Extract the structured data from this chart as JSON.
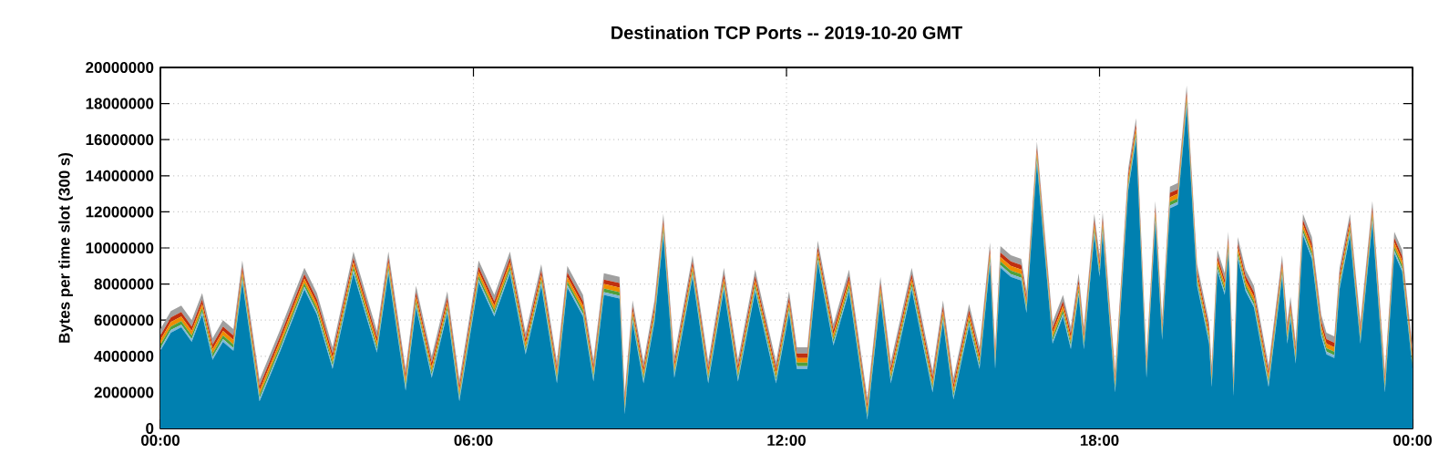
{
  "chart_data": {
    "type": "area",
    "stacked": true,
    "title": "Destination TCP Ports -- 2019-10-20 GMT",
    "ylabel": "Bytes per time slot (300 s)",
    "x": [
      0,
      0.2,
      0.4,
      0.6,
      0.8,
      1.0,
      1.2,
      1.4,
      1.57,
      1.9,
      2.3,
      2.76,
      3.0,
      3.3,
      3.7,
      4.15,
      4.37,
      4.7,
      4.9,
      5.2,
      5.5,
      5.73,
      6.1,
      6.4,
      6.7,
      7.0,
      7.3,
      7.6,
      7.8,
      8.1,
      8.3,
      8.5,
      8.8,
      8.9,
      9.05,
      9.26,
      9.47,
      9.64,
      9.85,
      10.2,
      10.5,
      10.8,
      11.07,
      11.4,
      11.8,
      12.05,
      12.2,
      12.4,
      12.6,
      12.9,
      13.2,
      13.55,
      13.8,
      14.0,
      14.4,
      14.8,
      15.0,
      15.2,
      15.5,
      15.7,
      15.9,
      16.0,
      16.1,
      16.3,
      16.5,
      16.6,
      16.8,
      17.1,
      17.3,
      17.45,
      17.6,
      17.7,
      17.9,
      18.0,
      18.06,
      18.2,
      18.3,
      18.55,
      18.7,
      18.9,
      19.07,
      19.2,
      19.35,
      19.5,
      19.67,
      19.87,
      20.1,
      20.15,
      20.26,
      20.4,
      20.47,
      20.57,
      20.65,
      20.8,
      20.96,
      21.24,
      21.5,
      21.6,
      21.66,
      21.76,
      21.9,
      22.07,
      22.25,
      22.35,
      22.5,
      22.6,
      22.8,
      23.0,
      23.23,
      23.47,
      23.65,
      23.8,
      24.0
    ],
    "series": [
      {
        "color": "#0080b0",
        "values": [
          4300000,
          5300000,
          5600000,
          4800000,
          6300000,
          3800000,
          4800000,
          4300000,
          8100000,
          1500000,
          4300000,
          7700000,
          6300000,
          3300000,
          8600000,
          4200000,
          8600000,
          2100000,
          6700000,
          2800000,
          6400000,
          1500000,
          8100000,
          6200000,
          8600000,
          4100000,
          7900000,
          2500000,
          7800000,
          6200000,
          2600000,
          7400000,
          7200000,
          800000,
          5900000,
          2500000,
          5900000,
          10700000,
          2800000,
          8400000,
          2500000,
          7700000,
          2600000,
          7600000,
          2500000,
          6400000,
          3300000,
          3300000,
          9200000,
          4600000,
          7600000,
          500000,
          7200000,
          2500000,
          7700000,
          2000000,
          5900000,
          1600000,
          5700000,
          3300000,
          9100000,
          3300000,
          8900000,
          8400000,
          8200000,
          6400000,
          14700000,
          4700000,
          6200000,
          4400000,
          7400000,
          4400000,
          10700000,
          8400000,
          10800000,
          5600000,
          2000000,
          13200000,
          16000000,
          2800000,
          11400000,
          4900000,
          12200000,
          12400000,
          17800000,
          7900000,
          4700000,
          2300000,
          8700000,
          7400000,
          9700000,
          1800000,
          9400000,
          7600000,
          6700000,
          2300000,
          8400000,
          4700000,
          6100000,
          3600000,
          10700000,
          9400000,
          5100000,
          4100000,
          3900000,
          7700000,
          10700000,
          4700000,
          11400000,
          2000000,
          9700000,
          8700000,
          3300000
        ]
      },
      {
        "color": "#80b8d8",
        "values": [
          150000,
          150000,
          150000,
          150000,
          150000,
          150000,
          150000,
          150000,
          150000,
          150000,
          150000,
          150000,
          150000,
          150000,
          150000,
          150000,
          150000,
          150000,
          150000,
          150000,
          150000,
          150000,
          150000,
          150000,
          150000,
          150000,
          150000,
          150000,
          150000,
          150000,
          150000,
          150000,
          150000,
          150000,
          150000,
          150000,
          150000,
          150000,
          150000,
          150000,
          150000,
          150000,
          150000,
          150000,
          150000,
          150000,
          150000,
          150000,
          150000,
          150000,
          150000,
          150000,
          150000,
          150000,
          150000,
          150000,
          150000,
          150000,
          150000,
          150000,
          150000,
          150000,
          150000,
          150000,
          150000,
          150000,
          150000,
          150000,
          150000,
          150000,
          150000,
          150000,
          150000,
          150000,
          150000,
          150000,
          150000,
          150000,
          150000,
          150000,
          150000,
          150000,
          150000,
          150000,
          150000,
          150000,
          150000,
          150000,
          150000,
          150000,
          150000,
          150000,
          150000,
          150000,
          150000,
          150000,
          150000,
          150000,
          150000,
          150000,
          150000,
          150000,
          150000,
          150000,
          150000,
          150000,
          150000,
          150000,
          150000,
          150000,
          150000,
          150000,
          150000
        ]
      },
      {
        "color": "#4ea03c",
        "values": [
          200000,
          200000,
          200000,
          200000,
          200000,
          200000,
          200000,
          200000,
          200000,
          200000,
          200000,
          200000,
          200000,
          200000,
          200000,
          200000,
          200000,
          200000,
          200000,
          200000,
          200000,
          200000,
          200000,
          200000,
          200000,
          200000,
          200000,
          200000,
          200000,
          200000,
          200000,
          200000,
          200000,
          200000,
          200000,
          200000,
          200000,
          200000,
          200000,
          200000,
          200000,
          200000,
          200000,
          200000,
          200000,
          200000,
          200000,
          200000,
          200000,
          200000,
          200000,
          200000,
          200000,
          200000,
          200000,
          200000,
          200000,
          200000,
          200000,
          200000,
          200000,
          200000,
          200000,
          200000,
          200000,
          200000,
          200000,
          200000,
          200000,
          200000,
          200000,
          200000,
          200000,
          200000,
          200000,
          200000,
          200000,
          200000,
          200000,
          200000,
          200000,
          200000,
          200000,
          200000,
          200000,
          200000,
          200000,
          200000,
          200000,
          200000,
          200000,
          200000,
          200000,
          200000,
          200000,
          200000,
          200000,
          200000,
          200000,
          200000,
          200000,
          200000,
          200000,
          200000,
          200000,
          200000,
          200000,
          200000,
          200000,
          200000,
          200000,
          200000,
          200000
        ]
      },
      {
        "color": "#f08c00",
        "values": [
          250000,
          250000,
          250000,
          250000,
          250000,
          250000,
          250000,
          250000,
          250000,
          250000,
          250000,
          250000,
          250000,
          250000,
          250000,
          250000,
          250000,
          250000,
          250000,
          250000,
          250000,
          250000,
          250000,
          250000,
          250000,
          250000,
          250000,
          250000,
          250000,
          250000,
          250000,
          250000,
          250000,
          250000,
          250000,
          250000,
          250000,
          250000,
          250000,
          250000,
          250000,
          250000,
          250000,
          250000,
          250000,
          250000,
          250000,
          250000,
          250000,
          250000,
          250000,
          250000,
          250000,
          250000,
          250000,
          250000,
          250000,
          250000,
          250000,
          250000,
          250000,
          250000,
          250000,
          250000,
          250000,
          250000,
          250000,
          250000,
          250000,
          250000,
          250000,
          250000,
          250000,
          250000,
          250000,
          250000,
          250000,
          250000,
          250000,
          250000,
          250000,
          250000,
          250000,
          250000,
          250000,
          250000,
          250000,
          250000,
          250000,
          250000,
          250000,
          250000,
          250000,
          250000,
          250000,
          250000,
          250000,
          250000,
          250000,
          250000,
          250000,
          250000,
          250000,
          250000,
          250000,
          250000,
          250000,
          250000,
          250000,
          250000,
          250000,
          250000,
          250000
        ]
      },
      {
        "color": "#c03010",
        "values": [
          250000,
          250000,
          250000,
          250000,
          250000,
          250000,
          250000,
          250000,
          250000,
          250000,
          250000,
          250000,
          250000,
          250000,
          250000,
          250000,
          250000,
          250000,
          250000,
          250000,
          250000,
          250000,
          250000,
          250000,
          250000,
          250000,
          250000,
          250000,
          250000,
          250000,
          250000,
          250000,
          250000,
          250000,
          250000,
          250000,
          250000,
          250000,
          250000,
          250000,
          250000,
          250000,
          250000,
          250000,
          250000,
          250000,
          250000,
          250000,
          250000,
          250000,
          250000,
          250000,
          250000,
          250000,
          250000,
          250000,
          250000,
          250000,
          250000,
          250000,
          250000,
          250000,
          250000,
          250000,
          250000,
          250000,
          250000,
          250000,
          250000,
          250000,
          250000,
          250000,
          250000,
          250000,
          250000,
          250000,
          250000,
          250000,
          250000,
          250000,
          250000,
          250000,
          250000,
          250000,
          250000,
          250000,
          250000,
          250000,
          250000,
          250000,
          250000,
          250000,
          250000,
          250000,
          250000,
          250000,
          250000,
          250000,
          250000,
          250000,
          250000,
          250000,
          250000,
          250000,
          250000,
          250000,
          250000,
          250000,
          250000,
          250000,
          250000,
          250000,
          250000
        ]
      },
      {
        "color": "#a0a0a0",
        "values": [
          350000,
          350000,
          350000,
          350000,
          350000,
          350000,
          350000,
          350000,
          350000,
          350000,
          350000,
          350000,
          350000,
          350000,
          350000,
          350000,
          350000,
          350000,
          350000,
          350000,
          350000,
          350000,
          350000,
          350000,
          350000,
          350000,
          350000,
          350000,
          350000,
          350000,
          350000,
          350000,
          350000,
          350000,
          350000,
          350000,
          350000,
          350000,
          350000,
          350000,
          350000,
          350000,
          350000,
          350000,
          350000,
          350000,
          350000,
          350000,
          350000,
          350000,
          350000,
          350000,
          350000,
          350000,
          350000,
          350000,
          350000,
          350000,
          350000,
          350000,
          350000,
          350000,
          350000,
          350000,
          350000,
          350000,
          350000,
          350000,
          350000,
          350000,
          350000,
          350000,
          350000,
          350000,
          350000,
          350000,
          350000,
          350000,
          350000,
          350000,
          350000,
          350000,
          350000,
          350000,
          350000,
          350000,
          350000,
          350000,
          350000,
          350000,
          350000,
          350000,
          350000,
          350000,
          350000,
          350000,
          350000,
          350000,
          350000,
          350000,
          350000,
          350000,
          350000,
          350000,
          350000,
          350000,
          350000,
          350000,
          350000,
          350000,
          350000,
          350000,
          350000
        ]
      }
    ],
    "xlim": [
      0,
      24
    ],
    "xticks": [
      {
        "value": 0,
        "label": "00:00"
      },
      {
        "value": 6,
        "label": "06:00"
      },
      {
        "value": 12,
        "label": "12:00"
      },
      {
        "value": 18,
        "label": "18:00"
      },
      {
        "value": 24,
        "label": "00:00"
      }
    ],
    "ylim": [
      0,
      20000000
    ],
    "yticks": [
      0,
      2000000,
      4000000,
      6000000,
      8000000,
      10000000,
      12000000,
      14000000,
      16000000,
      18000000,
      20000000
    ],
    "grid": true
  }
}
